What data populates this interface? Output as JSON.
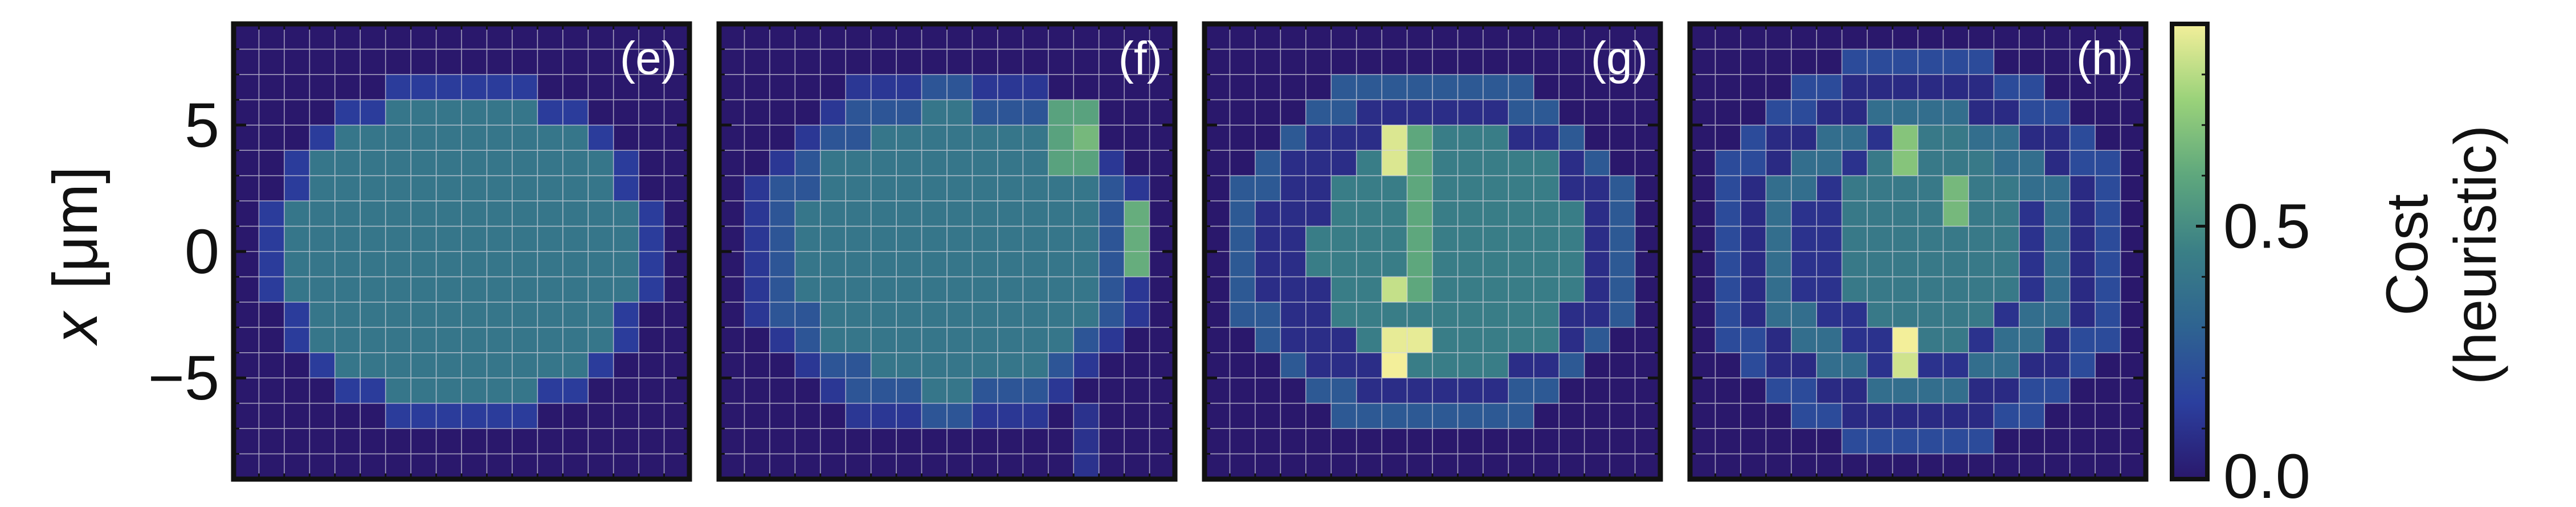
{
  "colormap": [
    "#2a186c",
    "#2b3f9e",
    "#2e6391",
    "#3a7f86",
    "#5ea77d",
    "#9ad27a",
    "#f3ef9a"
  ],
  "grid_color": "#d8d8e0",
  "y_axis": {
    "label_var": "x",
    "label_unit": "[μm]",
    "ticks": [
      5,
      0,
      -5
    ],
    "tick_labels": [
      "5",
      "0",
      "−5"
    ],
    "range": [
      -9,
      9
    ]
  },
  "colorbar": {
    "label_line1": "Cost",
    "label_line2": "(heuristic)",
    "ticks": [
      0.0,
      0.5
    ],
    "tick_labels": [
      "0.0",
      "0.5"
    ],
    "range": [
      0,
      0.9
    ]
  },
  "chart_data": [
    {
      "type": "heatmap",
      "panel_label": "(e)",
      "x_range": [
        -9,
        9
      ],
      "y_range": [
        -9,
        9
      ],
      "rows": 18,
      "cols": 18,
      "regions": [
        {
          "shape": "ellipse",
          "center": [
            0,
            0
          ],
          "radius": [
            7.7,
            7.0
          ],
          "value": 0.14
        },
        {
          "shape": "ellipse",
          "center": [
            0,
            0
          ],
          "radius": [
            6.8,
            6.1
          ],
          "value": 0.4
        }
      ]
    },
    {
      "type": "heatmap",
      "panel_label": "(f)",
      "x_range": [
        -9,
        9
      ],
      "y_range": [
        -9,
        9
      ],
      "rows": 18,
      "cols": 18,
      "regions": [
        {
          "shape": "ellipse",
          "center": [
            0,
            0
          ],
          "radius": [
            8.0,
            7.4
          ],
          "value": 0.12
        },
        {
          "shape": "ellipse",
          "center": [
            0,
            0
          ],
          "radius": [
            7.2,
            6.6
          ],
          "value": 0.24
        },
        {
          "shape": "ellipse",
          "center": [
            0.3,
            0
          ],
          "radius": [
            6.2,
            5.6
          ],
          "value": 0.4
        },
        {
          "shape": "rect",
          "x": [
            4,
            6
          ],
          "y": [
            3,
            6
          ],
          "value": 0.58
        },
        {
          "shape": "rect",
          "x": [
            5,
            6
          ],
          "y": [
            4,
            5
          ],
          "value": 0.66
        },
        {
          "shape": "rect",
          "x": [
            7,
            8
          ],
          "y": [
            -1,
            2
          ],
          "value": 0.62
        },
        {
          "shape": "rect",
          "x": [
            5,
            6
          ],
          "y": [
            -9,
            -6
          ],
          "value": 0.1
        }
      ]
    },
    {
      "type": "heatmap",
      "panel_label": "(g)",
      "x_range": [
        -9,
        9
      ],
      "y_range": [
        -9,
        9
      ],
      "rows": 18,
      "cols": 18,
      "regions": [
        {
          "shape": "ellipse",
          "center": [
            0,
            0
          ],
          "radius": [
            8.2,
            7.3
          ],
          "value": 0.26
        },
        {
          "shape": "ellipse",
          "center": [
            0.2,
            0
          ],
          "radius": [
            7.1,
            6.2
          ],
          "value": 0.08
        },
        {
          "shape": "ellipse",
          "center": [
            0.6,
            0
          ],
          "radius": [
            5.2,
            5.3
          ],
          "value": 0.44
        },
        {
          "shape": "rect",
          "x": [
            -2,
            -1
          ],
          "y": [
            -5,
            -4
          ],
          "value": 0.9
        },
        {
          "shape": "rect",
          "x": [
            -2,
            0
          ],
          "y": [
            -4,
            -3
          ],
          "value": 0.88
        },
        {
          "shape": "rect",
          "x": [
            -2,
            -1
          ],
          "y": [
            -2,
            -1
          ],
          "value": 0.82
        },
        {
          "shape": "rect",
          "x": [
            -2,
            -1
          ],
          "y": [
            3,
            5
          ],
          "value": 0.86
        },
        {
          "shape": "rect",
          "x": [
            -1,
            0
          ],
          "y": [
            -2,
            5
          ],
          "value": 0.6
        }
      ]
    },
    {
      "type": "heatmap",
      "panel_label": "(h)",
      "x_range": [
        -9,
        9
      ],
      "y_range": [
        -9,
        9
      ],
      "rows": 18,
      "cols": 18,
      "regions": [
        {
          "shape": "ellipse",
          "center": [
            0,
            0
          ],
          "radius": [
            8.4,
            8.1
          ],
          "value": 0.2
        },
        {
          "shape": "ellipse",
          "center": [
            0,
            0
          ],
          "radius": [
            7.2,
            7.0
          ],
          "value": 0.07
        },
        {
          "shape": "ellipse",
          "center": [
            0,
            0
          ],
          "radius": [
            6.1,
            5.9
          ],
          "value": 0.36
        },
        {
          "shape": "ellipse",
          "center": [
            0,
            0
          ],
          "radius": [
            5.0,
            4.9
          ],
          "value": 0.1
        },
        {
          "shape": "ellipse",
          "center": [
            0.5,
            0.5
          ],
          "radius": [
            3.6,
            4.3
          ],
          "value": 0.42
        },
        {
          "shape": "rect",
          "x": [
            -1,
            0
          ],
          "y": [
            -5,
            -4
          ],
          "value": 0.84
        },
        {
          "shape": "rect",
          "x": [
            -1,
            0
          ],
          "y": [
            -4,
            -3
          ],
          "value": 0.98
        },
        {
          "shape": "rect",
          "x": [
            -1,
            0
          ],
          "y": [
            3,
            5
          ],
          "value": 0.7
        },
        {
          "shape": "rect",
          "x": [
            1,
            2
          ],
          "y": [
            1,
            3
          ],
          "value": 0.66
        }
      ]
    }
  ]
}
